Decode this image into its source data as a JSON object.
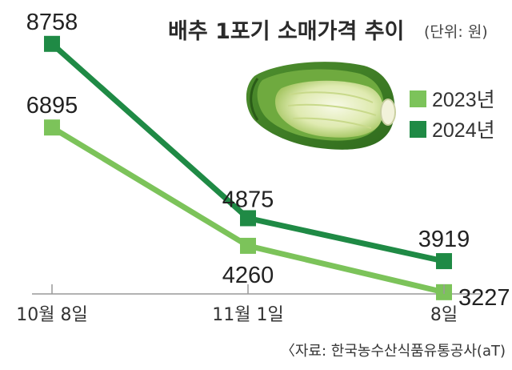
{
  "chart_data": {
    "type": "line",
    "title": "배추 1포기 소매가격 추이",
    "unit": "(단위: 원)",
    "categories": [
      "10월 8일",
      "11월 1일",
      "8일"
    ],
    "series": [
      {
        "name": "2023년",
        "values": [
          6895,
          4260,
          3227
        ],
        "color": "#7cc35a"
      },
      {
        "name": "2024년",
        "values": [
          8758,
          4875,
          3919
        ],
        "color": "#1f8a45"
      }
    ],
    "ylim": [
      2600,
      9200
    ],
    "grid": false,
    "legend": "top-right",
    "source": "〈자료: 한국농수산식품유통공사(aT)"
  },
  "icons": {
    "cabbage": "napa-cabbage-illustration"
  }
}
